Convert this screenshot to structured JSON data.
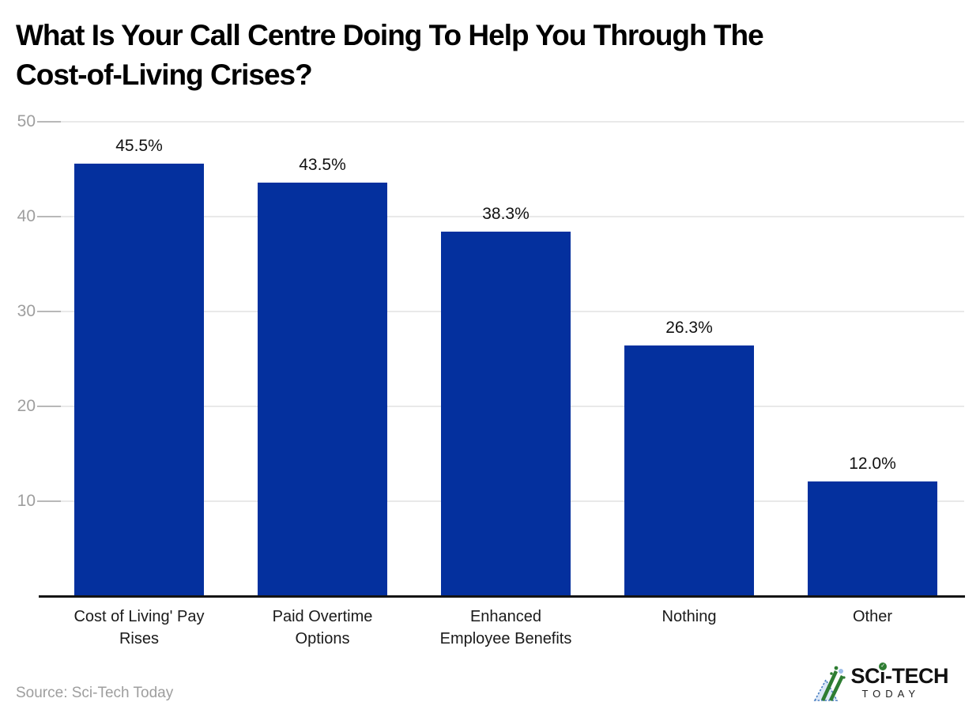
{
  "header": {
    "title_lines": [
      "What Is Your Call Centre Doing To Help You Through The",
      "Cost-of-Living Crises?"
    ]
  },
  "footer": {
    "source": "Source: Sci-Tech Today",
    "logo": {
      "icon": "mountain-triangle-icon",
      "part1": "SC",
      "part2": "i",
      "part3": "-TECH",
      "line2": "TODAY",
      "check_glyph": "✓"
    }
  },
  "colors": {
    "bar": "#04309E",
    "grid": "#e9e9e9",
    "tick": "#b8b8b8",
    "axis_line": "#141414",
    "axis_label": "#9e9e9e",
    "value_label": "#111111",
    "category_label": "#1a1a1a",
    "logo_green": "#2e7d32",
    "logo_blue": "#4a7fc1",
    "logo_light_blue": "#dbe7f8"
  },
  "chart_data": {
    "type": "bar",
    "title": "What Is Your Call Centre Doing To Help You Through The Cost-of-Living Crises?",
    "categories": [
      "Cost of Living' Pay Rises",
      "Paid Overtime Options",
      "Enhanced Employee Benefits",
      "Nothing",
      "Other"
    ],
    "category_lines": [
      [
        "Cost of Living' Pay",
        "Rises"
      ],
      [
        "Paid Overtime",
        "Options"
      ],
      [
        "Enhanced",
        "Employee Benefits"
      ],
      [
        "Nothing"
      ],
      [
        "Other"
      ]
    ],
    "values": [
      45.5,
      43.5,
      38.3,
      26.3,
      12.0
    ],
    "value_labels": [
      "45.5%",
      "43.5%",
      "38.3%",
      "26.3%",
      "12.0%"
    ],
    "xlabel": "",
    "ylabel": "",
    "ylim": [
      0,
      50
    ],
    "yticks": [
      10,
      20,
      30,
      40,
      50
    ],
    "grid": "horizontal",
    "legend": "none",
    "source": "Sci-Tech Today"
  }
}
